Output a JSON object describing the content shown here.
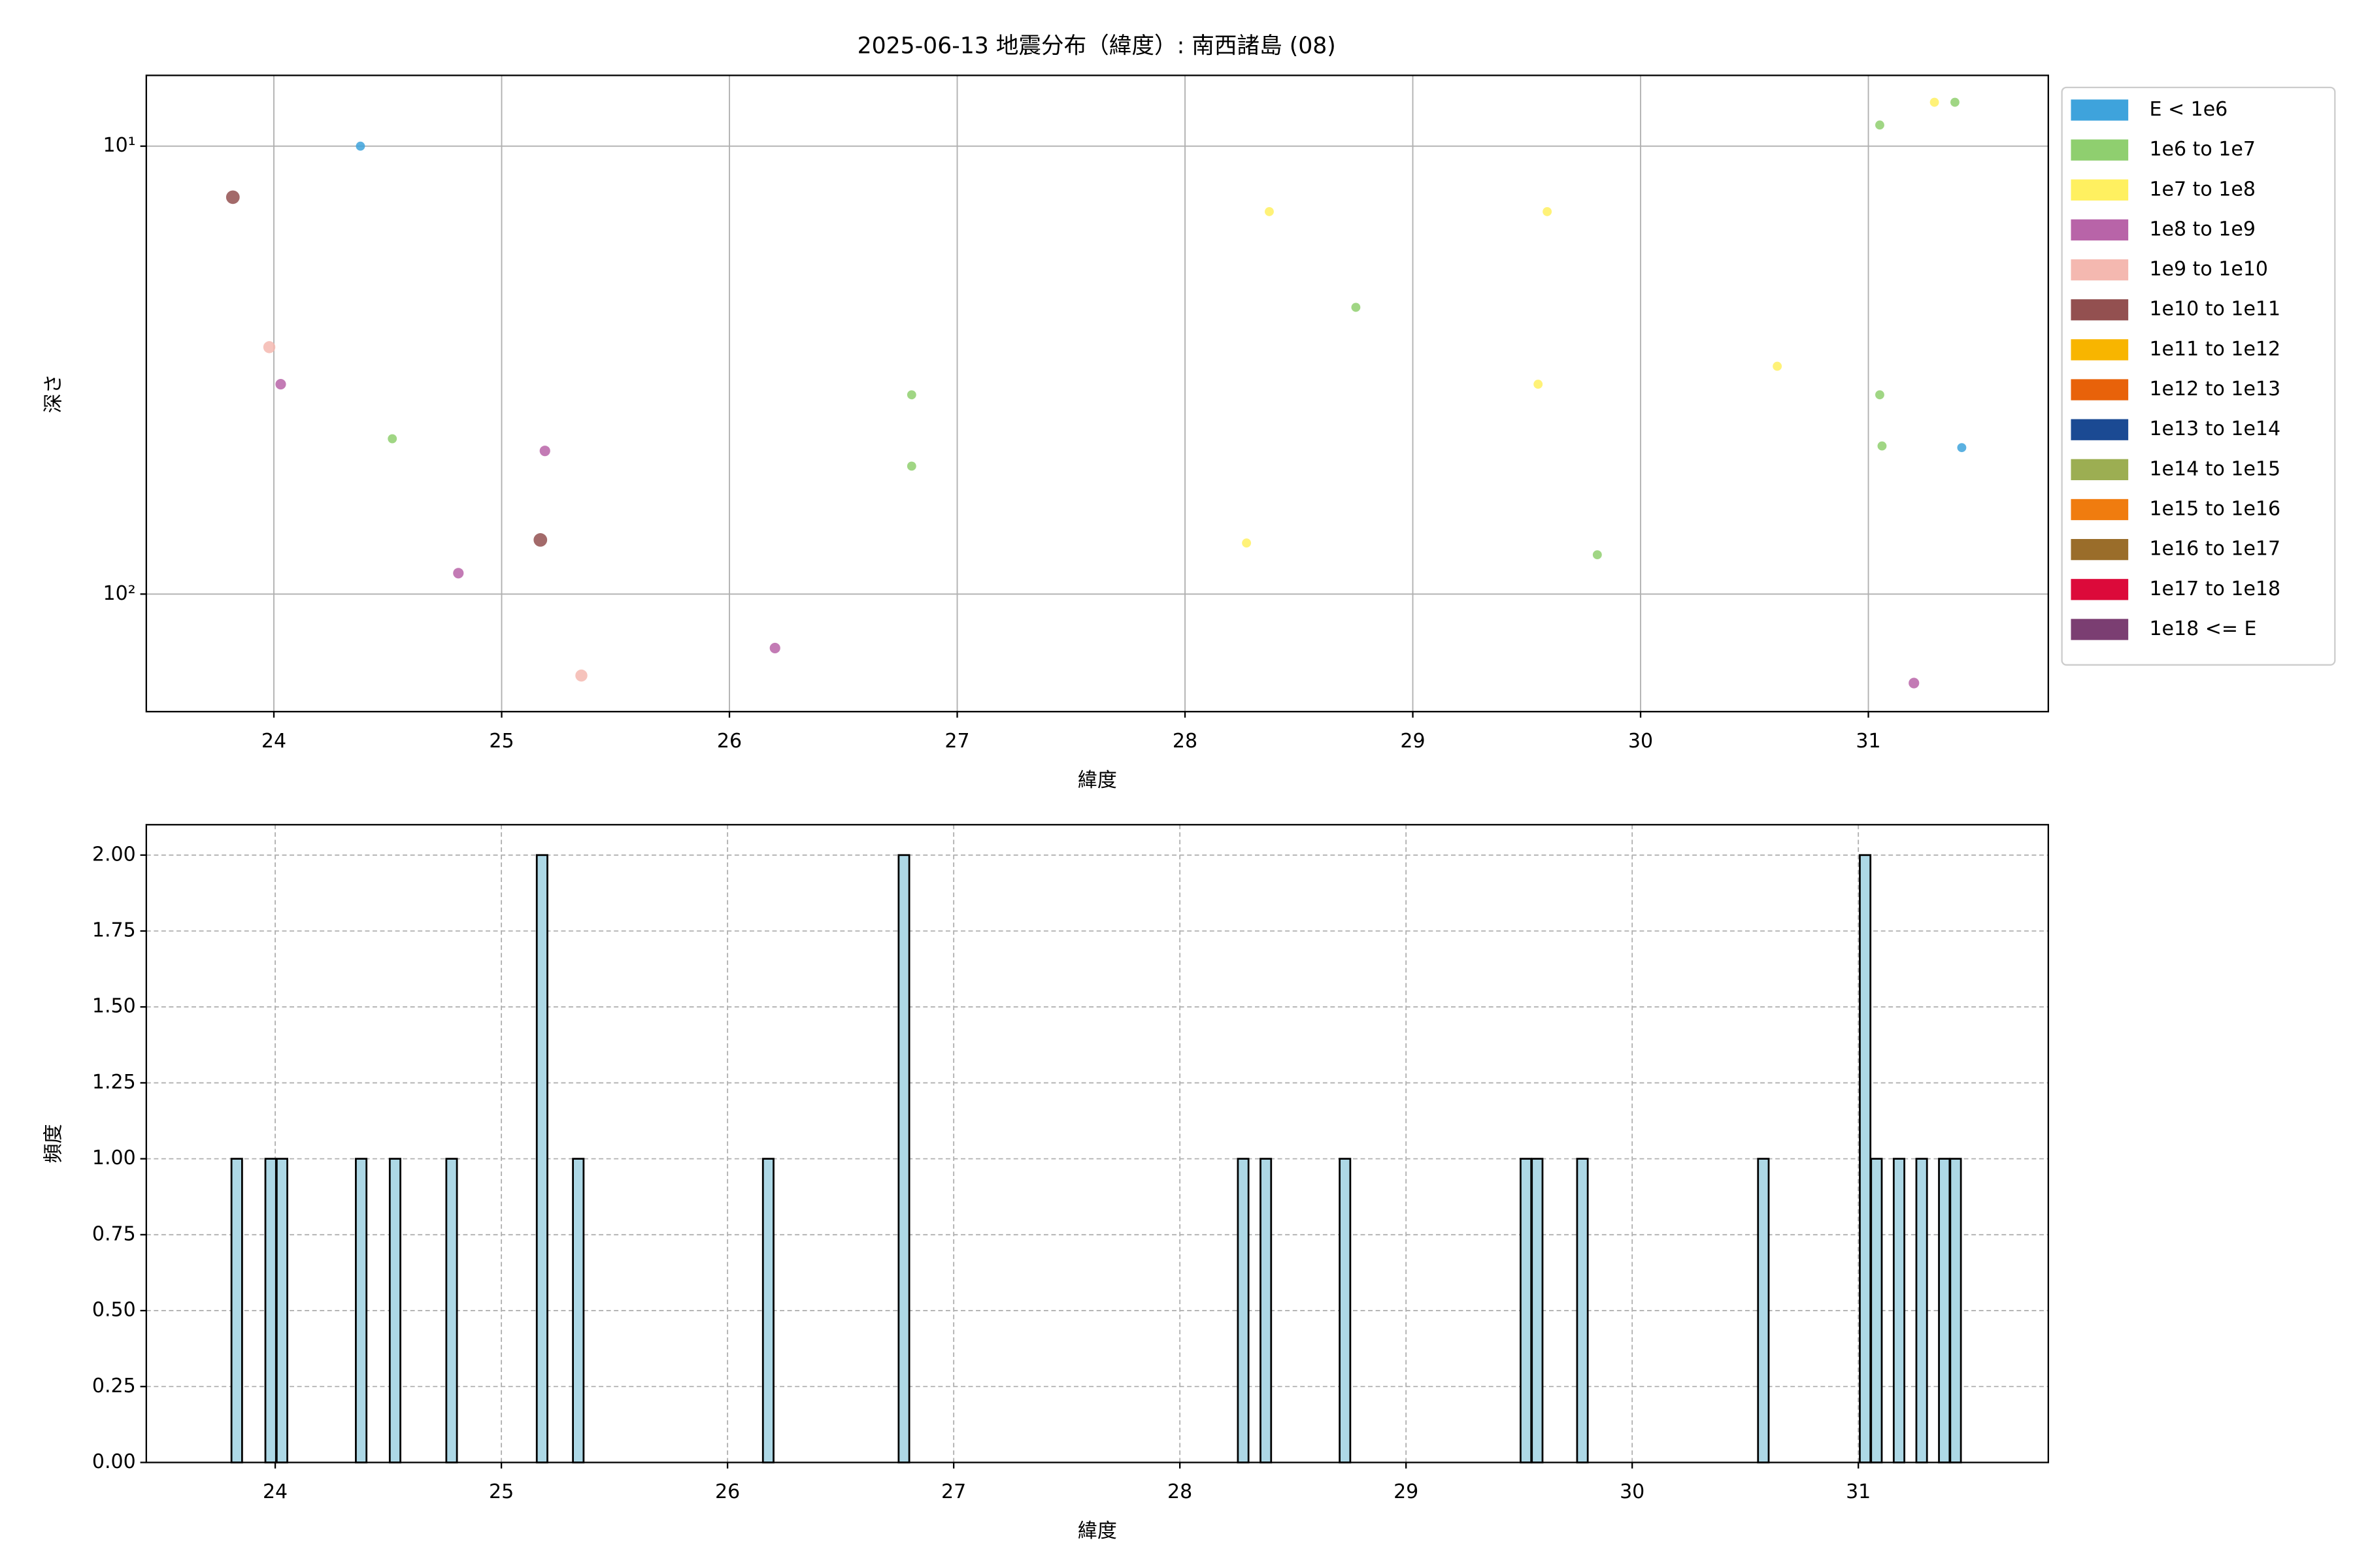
{
  "chart_data": [
    {
      "type": "scatter",
      "title": "2025-06-13 地震分布（緯度）: 南西諸島 (08)",
      "x_label": "緯度",
      "y_label": "深さ",
      "xlim": [
        23.44,
        31.79
      ],
      "xticks": [
        24,
        25,
        26,
        27,
        28,
        29,
        30,
        31
      ],
      "ylim": [
        183,
        6.95
      ],
      "y_scale": "log",
      "yticks": [
        {
          "value": 10,
          "label": "10¹"
        },
        {
          "value": 100,
          "label": "10²"
        }
      ],
      "grid": true,
      "grid_style": "solid",
      "legend": "outside-upper-right",
      "series": [
        {
          "name": "E < 1e6",
          "color": "#3ea3dc",
          "marker_size": 3,
          "x": [
            24.38,
            31.41
          ],
          "values": [
            10,
            47.1
          ]
        },
        {
          "name": "1e6 to 1e7",
          "color": "#8fcf6f",
          "marker_size": 3,
          "x": [
            24.52,
            26.8,
            26.8,
            28.75,
            29.81,
            31.05,
            31.05,
            31.06,
            31.38
          ],
          "values": [
            45.0,
            35.9,
            51.8,
            22.9,
            81.7,
            8.97,
            35.9,
            46.7,
            7.98
          ]
        },
        {
          "name": "1e7 to 1e8",
          "color": "#fff060",
          "marker_size": 3,
          "x": [
            28.37,
            28.27,
            29.59,
            29.55,
            30.6,
            31.29
          ],
          "values": [
            14.0,
            76.9,
            14.0,
            34.0,
            31.0,
            7.98
          ]
        },
        {
          "name": "1e8 to 1e9",
          "color": "#b864a8",
          "marker_size": 3.5,
          "x": [
            24.03,
            25.19,
            24.81,
            26.2,
            31.2
          ],
          "values": [
            34.0,
            47.9,
            89.8,
            132,
            158
          ]
        },
        {
          "name": "1e9 to 1e10",
          "color": "#f4b8b0",
          "marker_size": 4,
          "x": [
            23.98,
            25.35
          ],
          "values": [
            28.1,
            152
          ]
        },
        {
          "name": "1e10 to 1e11",
          "color": "#935050",
          "marker_size": 4.5,
          "x": [
            23.82,
            25.17
          ],
          "values": [
            13.0,
            75.7
          ]
        },
        {
          "name": "1e11 to 1e12",
          "color": "#f8b500",
          "x": [],
          "values": []
        },
        {
          "name": "1e12 to 1e13",
          "color": "#e8620a",
          "x": [],
          "values": []
        },
        {
          "name": "1e13 to 1e14",
          "color": "#1b4a93",
          "x": [],
          "values": []
        },
        {
          "name": "1e14 to 1e15",
          "color": "#9cae52",
          "x": [],
          "values": []
        },
        {
          "name": "1e15 to 1e16",
          "color": "#f07c0f",
          "x": [],
          "values": []
        },
        {
          "name": "1e16 to 1e17",
          "color": "#9a6d2a",
          "x": [],
          "values": []
        },
        {
          "name": "1e17 to 1e18",
          "color": "#dc0a3a",
          "x": [],
          "values": []
        },
        {
          "name": "1e18 <= E",
          "color": "#7b3e72",
          "x": [],
          "values": []
        }
      ]
    },
    {
      "type": "bar",
      "x_label": "緯度",
      "y_label": "頻度",
      "color": "#add8e6",
      "edge_color": "#000000",
      "bar_width": 0.047,
      "xlim": [
        23.43,
        31.84
      ],
      "xticks": [
        24,
        25,
        26,
        27,
        28,
        29,
        30,
        31
      ],
      "ylim": [
        0,
        2.1
      ],
      "yticks": [
        {
          "value": 0,
          "label": "0.00"
        },
        {
          "value": 0.25,
          "label": "0.25"
        },
        {
          "value": 0.5,
          "label": "0.50"
        },
        {
          "value": 0.75,
          "label": "0.75"
        },
        {
          "value": 1,
          "label": "1.00"
        },
        {
          "value": 1.25,
          "label": "1.25"
        },
        {
          "value": 1.5,
          "label": "1.50"
        },
        {
          "value": 1.75,
          "label": "1.75"
        },
        {
          "value": 2,
          "label": "2.00"
        }
      ],
      "grid": true,
      "grid_style": "dashed",
      "x": [
        23.83,
        23.98,
        24.03,
        24.38,
        24.53,
        24.78,
        25.18,
        25.34,
        26.18,
        26.78,
        28.28,
        28.38,
        28.73,
        29.53,
        29.58,
        29.78,
        30.58,
        31.03,
        31.08,
        31.18,
        31.28,
        31.38,
        31.43
      ],
      "values": [
        1,
        1,
        1,
        1,
        1,
        1,
        2,
        1,
        1,
        2,
        1,
        1,
        1,
        1,
        1,
        1,
        1,
        2,
        1,
        1,
        1,
        1,
        1
      ]
    }
  ]
}
